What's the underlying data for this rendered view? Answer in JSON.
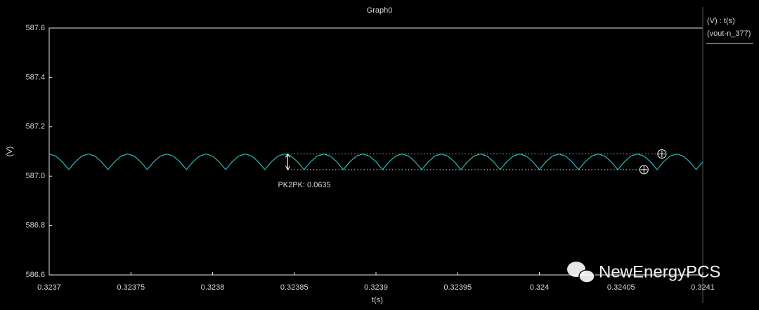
{
  "chart_data": {
    "type": "line",
    "title": "Graph0",
    "x_label": "t(s)",
    "y_label": "(V)",
    "legend_title": "(V) : t(s)",
    "xlim": [
      0.3237,
      0.3241
    ],
    "xticks": [
      0.3237,
      0.32375,
      0.3238,
      0.32385,
      0.3239,
      0.32395,
      0.324,
      0.32405,
      0.3241
    ],
    "ylim": [
      586.6,
      587.6
    ],
    "yticks": [
      586.6,
      586.8,
      {
        "value": 587,
        "label": "587.0"
      },
      587.2,
      587.4,
      587.6
    ],
    "grid": false,
    "x": [
      0.3237,
      0.323704,
      0.323708,
      0.323712,
      0.323716,
      0.32372,
      0.323724,
      0.323728,
      0.323732,
      0.323736,
      0.32374,
      0.323744,
      0.323748,
      0.323752,
      0.323756,
      0.32376,
      0.323764,
      0.323768,
      0.323772,
      0.323776,
      0.32378,
      0.323784,
      0.323788,
      0.323792,
      0.323796,
      0.3238,
      0.323804,
      0.323808,
      0.323812,
      0.323816,
      0.32382,
      0.323824,
      0.323828,
      0.323832,
      0.323836,
      0.32384,
      0.323844,
      0.323848,
      0.323852,
      0.323856,
      0.32386,
      0.323864,
      0.323868,
      0.323872,
      0.323876,
      0.32388,
      0.323884,
      0.323888,
      0.323892,
      0.323896,
      0.3239,
      0.323904,
      0.323908,
      0.323912,
      0.323916,
      0.32392,
      0.323924,
      0.323928,
      0.323932,
      0.323936,
      0.32394,
      0.323944,
      0.323948,
      0.323952,
      0.323956,
      0.32396,
      0.323964,
      0.323968,
      0.323972,
      0.323976,
      0.32398,
      0.323984,
      0.323988,
      0.323992,
      0.323996,
      0.324,
      0.324004,
      0.324008,
      0.324012,
      0.324016,
      0.32402,
      0.324024,
      0.324028,
      0.324032,
      0.324036,
      0.32404,
      0.324044,
      0.324048,
      0.324052,
      0.324056,
      0.32406,
      0.324064,
      0.324068,
      0.324072,
      0.324076,
      0.32408,
      0.324084,
      0.324088,
      0.324092,
      0.324096,
      0.3241
    ],
    "series": [
      {
        "name": "(vout-n_377)",
        "color": "#2ab7b7",
        "values": [
          587.09,
          587.0815,
          587.0583,
          587.0265,
          587.0583,
          587.0815,
          587.09,
          587.0815,
          587.0583,
          587.0265,
          587.0583,
          587.0815,
          587.09,
          587.0815,
          587.0583,
          587.0265,
          587.0583,
          587.0815,
          587.09,
          587.0815,
          587.0583,
          587.0265,
          587.0583,
          587.0815,
          587.09,
          587.0815,
          587.0583,
          587.0265,
          587.0583,
          587.0815,
          587.09,
          587.0815,
          587.0583,
          587.0265,
          587.0583,
          587.0815,
          587.09,
          587.0815,
          587.0583,
          587.0265,
          587.0583,
          587.0815,
          587.09,
          587.0815,
          587.0583,
          587.0265,
          587.0583,
          587.0815,
          587.09,
          587.0815,
          587.0583,
          587.0265,
          587.0583,
          587.0815,
          587.09,
          587.0815,
          587.0583,
          587.0265,
          587.0583,
          587.0815,
          587.09,
          587.0815,
          587.0583,
          587.0265,
          587.0583,
          587.0815,
          587.09,
          587.0815,
          587.0583,
          587.0265,
          587.0583,
          587.0815,
          587.09,
          587.0815,
          587.0583,
          587.0265,
          587.0583,
          587.0815,
          587.09,
          587.0815,
          587.0583,
          587.0265,
          587.0583,
          587.0815,
          587.09,
          587.0815,
          587.0583,
          587.0265,
          587.0583,
          587.0815,
          587.09,
          587.0815,
          587.0583,
          587.0265,
          587.0583,
          587.0815,
          587.09,
          587.0815,
          587.0583,
          587.0265,
          587.0583
        ]
      }
    ],
    "markers": [
      {
        "x": 0.324064,
        "y": 587.0265
      },
      {
        "x": 0.324075,
        "y": 587.09
      }
    ],
    "annotation": {
      "text": "PK2PK: 0.0635",
      "x": 0.323846
    },
    "watermark": "NewEnergyPCS"
  }
}
